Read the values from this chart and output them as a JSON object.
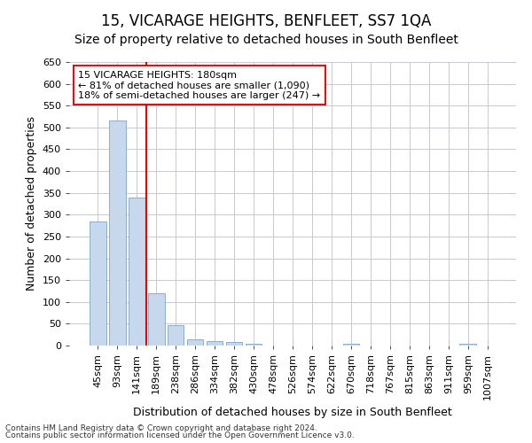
{
  "title": "15, VICARAGE HEIGHTS, BENFLEET, SS7 1QA",
  "subtitle": "Size of property relative to detached houses in South Benfleet",
  "xlabel": "Distribution of detached houses by size in South Benfleet",
  "ylabel": "Number of detached properties",
  "footnote1": "Contains HM Land Registry data © Crown copyright and database right 2024.",
  "footnote2": "Contains public sector information licensed under the Open Government Licence v3.0.",
  "categories": [
    "45sqm",
    "93sqm",
    "141sqm",
    "189sqm",
    "238sqm",
    "286sqm",
    "334sqm",
    "382sqm",
    "430sqm",
    "478sqm",
    "526sqm",
    "574sqm",
    "622sqm",
    "670sqm",
    "718sqm",
    "767sqm",
    "815sqm",
    "863sqm",
    "911sqm",
    "959sqm",
    "1007sqm"
  ],
  "values": [
    285,
    515,
    340,
    120,
    47,
    15,
    10,
    8,
    5,
    0,
    0,
    0,
    0,
    5,
    0,
    0,
    0,
    0,
    0,
    5,
    0
  ],
  "bar_color": "#c8d8ec",
  "bar_edge_color": "#7aA4c8",
  "vline_color": "#cc0000",
  "vline_pos": 2.5,
  "ylim": [
    0,
    650
  ],
  "yticks": [
    0,
    50,
    100,
    150,
    200,
    250,
    300,
    350,
    400,
    450,
    500,
    550,
    600,
    650
  ],
  "annotation_text": "15 VICARAGE HEIGHTS: 180sqm\n← 81% of detached houses are smaller (1,090)\n18% of semi-detached houses are larger (247) →",
  "annotation_box_color": "#ffffff",
  "annotation_border_color": "#cc0000",
  "bg_color": "#ffffff",
  "plot_bg_color": "#ffffff",
  "grid_color": "#c8c8d0",
  "title_fontsize": 12,
  "subtitle_fontsize": 10,
  "axis_label_fontsize": 9,
  "tick_fontsize": 8,
  "annot_fontsize": 8,
  "footnote_fontsize": 6.5
}
